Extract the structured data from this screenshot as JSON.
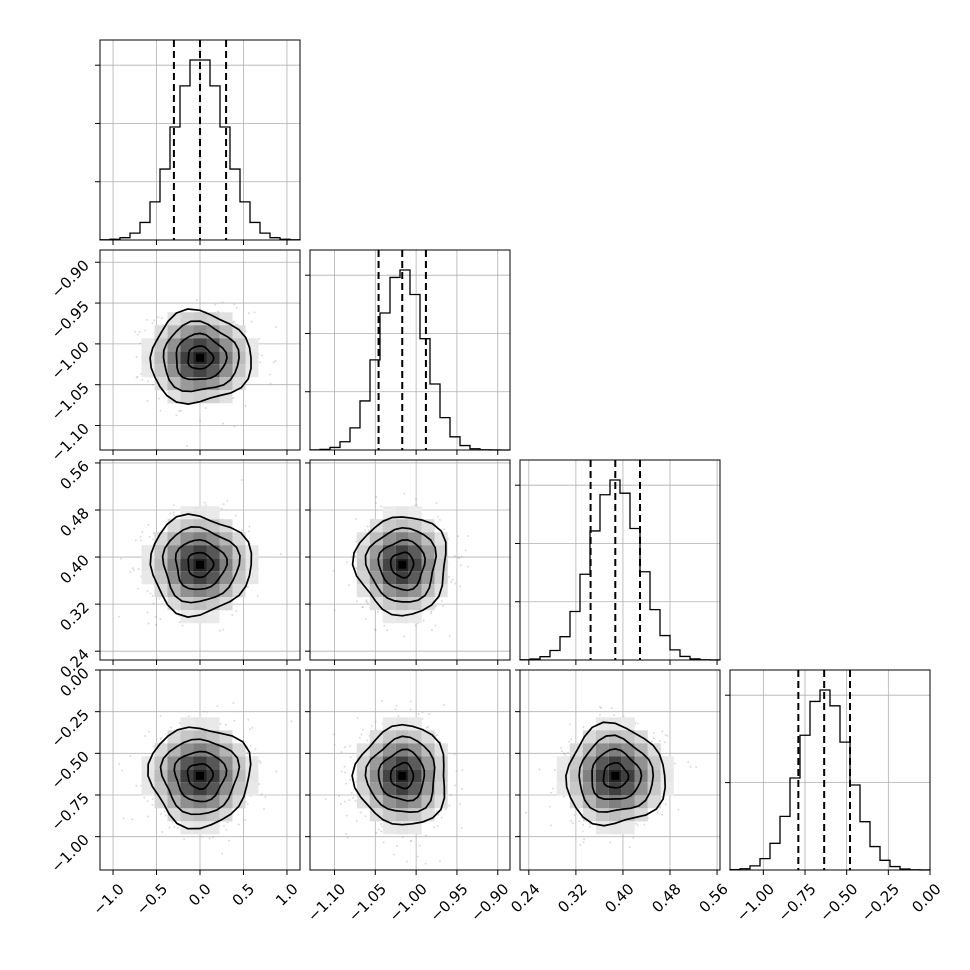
{
  "chart_data": {
    "type": "corner",
    "parameters": [
      {
        "mean": 0.0,
        "sd": 0.29,
        "quantiles": [
          -0.3,
          0.0,
          0.3
        ],
        "range": [
          -1.15,
          1.15
        ],
        "ticks": [
          -1.0,
          -0.5,
          0.0,
          0.5,
          1.0
        ],
        "tick_labels": [
          "−1.0",
          "−0.5",
          "0.0",
          "0.5",
          "1.0"
        ],
        "hist_ticks": 4
      },
      {
        "mean": -1.017,
        "sd": 0.028,
        "quantiles": [
          -1.046,
          -1.017,
          -0.988
        ],
        "range": [
          -1.13,
          -0.885
        ],
        "ticks": [
          -1.1,
          -1.05,
          -1.0,
          -0.95,
          -0.9
        ],
        "tick_labels": [
          "−1.10",
          "−1.05",
          "−1.00",
          "−0.95",
          "−0.90"
        ],
        "hist_ticks": 4
      },
      {
        "mean": 0.387,
        "sd": 0.042,
        "quantiles": [
          0.345,
          0.387,
          0.429
        ],
        "range": [
          0.225,
          0.565
        ],
        "ticks": [
          0.24,
          0.32,
          0.4,
          0.48,
          0.56
        ],
        "tick_labels": [
          "0.24",
          "0.32",
          "0.40",
          "0.48",
          "0.56"
        ],
        "hist_ticks": 4
      },
      {
        "mean": -0.635,
        "sd": 0.15,
        "quantiles": [
          -0.79,
          -0.635,
          -0.48
        ],
        "range": [
          -1.2,
          0.0
        ],
        "ticks": [
          -1.0,
          -0.75,
          -0.5,
          -0.25,
          0.0
        ],
        "tick_labels": [
          "−1.00",
          "−0.75",
          "−0.50",
          "−0.25",
          "0.00"
        ],
        "hist_ticks": 3
      }
    ],
    "grid": true,
    "histogram_bins": 20,
    "contour_levels_sigma": [
      0.5,
      1.0,
      1.5,
      2.0
    ]
  }
}
